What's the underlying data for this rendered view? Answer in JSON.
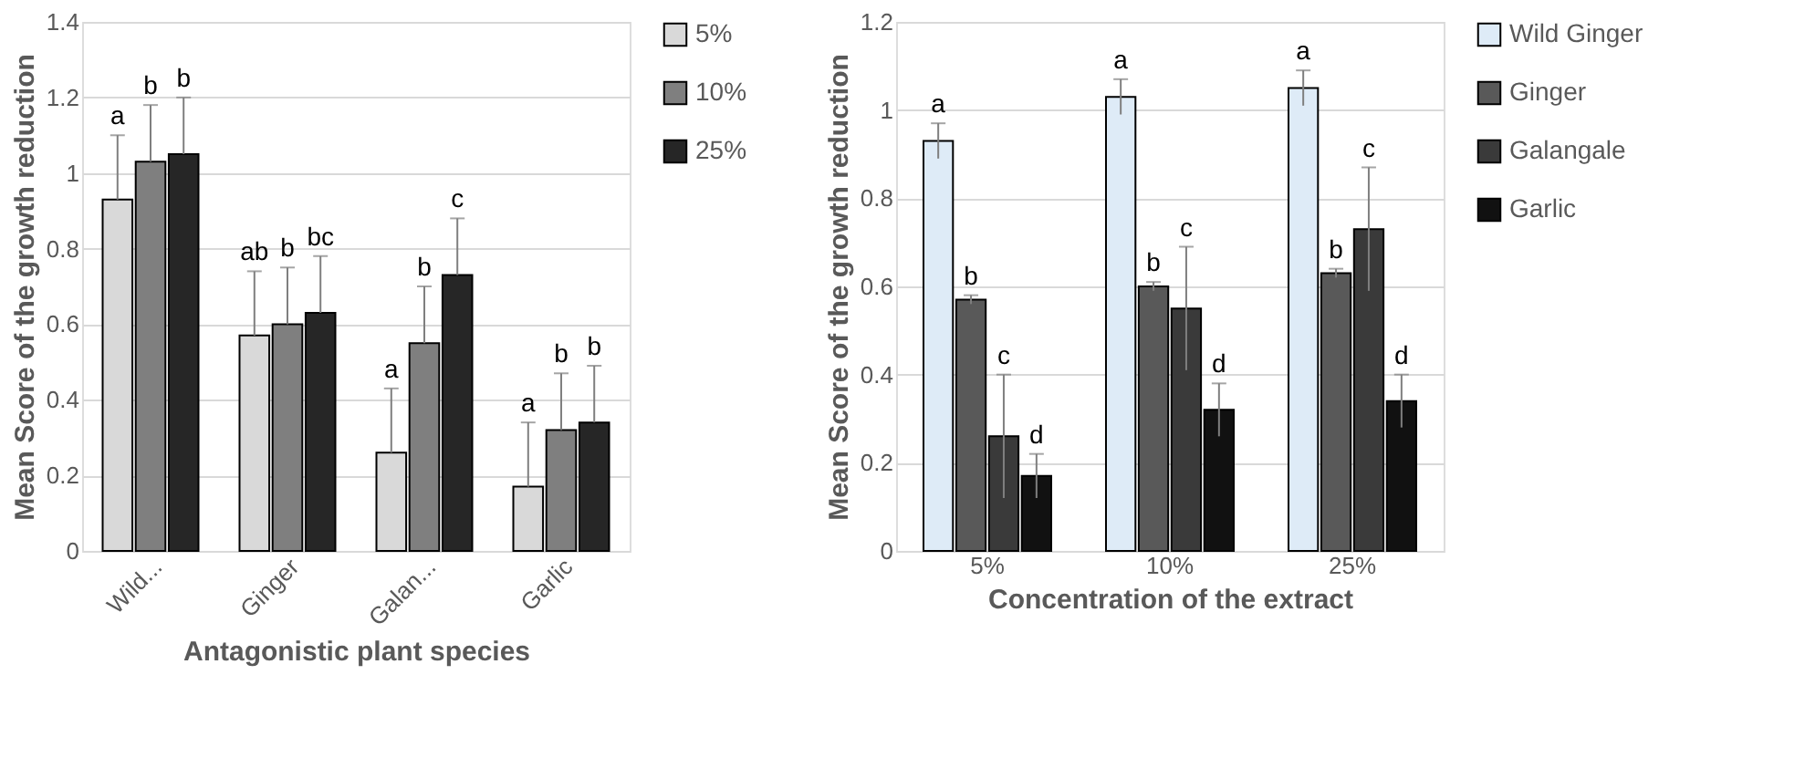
{
  "chart_data": [
    {
      "type": "bar",
      "xlabel": "Antagonistic plant species",
      "ylabel": "Mean Score of the growth reduction",
      "categories": [
        "Wild...",
        "Ginger",
        "Galan...",
        "Garlic"
      ],
      "ylim": [
        0,
        1.4
      ],
      "yticks": [
        0,
        0.2,
        0.4,
        0.6,
        0.8,
        1,
        1.2,
        1.4
      ],
      "grid": "y",
      "legend": "right",
      "series": [
        {
          "name": "5%",
          "color": "#d9d9d9",
          "values": [
            0.93,
            0.57,
            0.26,
            0.17
          ],
          "errors": [
            [
              0.93,
              1.1
            ],
            [
              0.57,
              0.74
            ],
            [
              0.26,
              0.43
            ],
            [
              0.17,
              0.34
            ]
          ],
          "value_labels": [
            "a",
            "ab",
            "a",
            "a"
          ]
        },
        {
          "name": "10%",
          "color": "#7f7f7f",
          "values": [
            1.03,
            0.6,
            0.55,
            0.32
          ],
          "errors": [
            [
              1.03,
              1.18
            ],
            [
              0.6,
              0.75
            ],
            [
              0.55,
              0.7
            ],
            [
              0.32,
              0.47
            ]
          ],
          "value_labels": [
            "b",
            "b",
            "b",
            "b"
          ]
        },
        {
          "name": "25%",
          "color": "#262626",
          "values": [
            1.05,
            0.63,
            0.73,
            0.34
          ],
          "errors": [
            [
              1.05,
              1.2
            ],
            [
              0.63,
              0.78
            ],
            [
              0.73,
              0.88
            ],
            [
              0.34,
              0.49
            ]
          ],
          "value_labels": [
            "b",
            "bc",
            "c",
            "b"
          ]
        }
      ]
    },
    {
      "type": "bar",
      "xlabel": "Concentration of the extract",
      "ylabel": "Mean Score of the growth reduction",
      "categories": [
        "5%",
        "10%",
        "25%"
      ],
      "ylim": [
        0,
        1.2
      ],
      "yticks": [
        0,
        0.2,
        0.4,
        0.6,
        0.8,
        1,
        1.2
      ],
      "grid": "y",
      "legend": "right",
      "series": [
        {
          "name": "Wild Ginger",
          "color": "#deebf7",
          "values": [
            0.93,
            1.03,
            1.05
          ],
          "errors": [
            0.04,
            0.04,
            0.04
          ],
          "value_labels": [
            "a",
            "a",
            "a"
          ]
        },
        {
          "name": "Ginger",
          "color": "#595959",
          "values": [
            0.57,
            0.6,
            0.63
          ],
          "errors": [
            0.01,
            0.01,
            0.01
          ],
          "value_labels": [
            "b",
            "b",
            "b"
          ]
        },
        {
          "name": "Galangale",
          "color": "#3a3a3a",
          "values": [
            0.26,
            0.55,
            0.73
          ],
          "errors": [
            0.14,
            0.14,
            0.14
          ],
          "value_labels": [
            "c",
            "c",
            "c"
          ]
        },
        {
          "name": "Garlic",
          "color": "#111111",
          "values": [
            0.17,
            0.32,
            0.34
          ],
          "errors": [
            0.05,
            0.06,
            0.06
          ],
          "value_labels": [
            "d",
            "d",
            "d"
          ]
        }
      ]
    }
  ]
}
